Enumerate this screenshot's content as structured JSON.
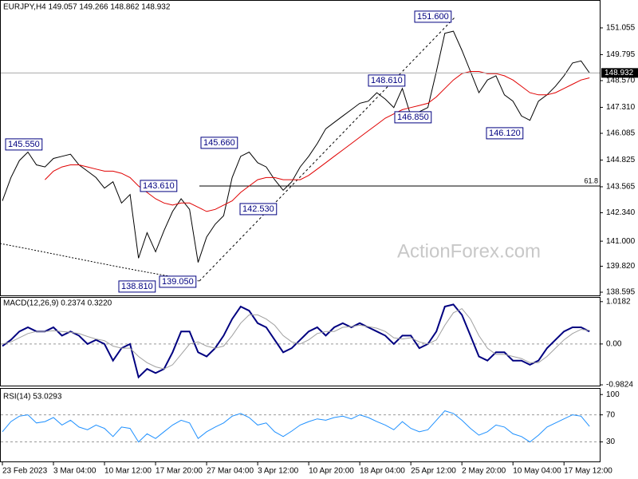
{
  "chart_data": [
    {
      "type": "line",
      "title": "EURJPY,H4  149.057 149.266 148.862 148.932",
      "ylim": [
        138.445,
        152.37
      ],
      "yticks": [
        {
          "value": 138.595,
          "label": "138.595"
        },
        {
          "value": 139.82,
          "label": "139.820"
        },
        {
          "value": 141.0,
          "label": "141.000"
        },
        {
          "value": 142.34,
          "label": "142.340"
        },
        143.565,
        144.825,
        146.085,
        {
          "value": 147.31,
          "label": "147.310"
        },
        {
          "value": 148.57,
          "label": "148.570"
        },
        149.795,
        151.055
      ],
      "last_price": 148.932,
      "fib": {
        "label": "61.8",
        "value": 143.6
      },
      "annotations": [
        "145.550",
        "143.610",
        "145.660",
        "142.530",
        "138.810",
        "139.050",
        "148.610",
        "146.850",
        "151.600",
        "146.120"
      ],
      "watermark": "ActionForex.com",
      "series": [
        {
          "color": "#000000",
          "values": [
            142.9,
            144.0,
            144.8,
            145.2,
            144.6,
            144.5,
            144.9,
            145.0,
            145.1,
            144.6,
            144.3,
            144.0,
            143.5,
            143.8,
            142.8,
            143.2,
            140.2,
            141.4,
            140.5,
            141.5,
            142.4,
            143.0,
            142.5,
            140.0,
            141.2,
            141.8,
            142.2,
            144.0,
            145.0,
            145.2,
            144.7,
            144.5,
            143.9,
            143.4,
            143.8,
            144.5,
            145.0,
            145.6,
            146.3,
            146.6,
            146.9,
            147.2,
            147.5,
            147.6,
            148.0,
            147.7,
            147.3,
            148.2,
            146.9,
            147.1,
            147.3,
            149.0,
            150.8,
            150.9,
            150.0,
            149.0,
            148.0,
            148.6,
            148.8,
            147.9,
            147.6,
            146.9,
            146.7,
            147.6,
            147.9,
            148.3,
            148.8,
            149.4,
            149.5,
            148.932
          ]
        },
        {
          "color": "#e00000",
          "values": [
            null,
            null,
            null,
            null,
            null,
            143.9,
            144.3,
            144.5,
            144.6,
            144.6,
            144.5,
            144.4,
            144.3,
            144.3,
            144.2,
            144.0,
            143.6,
            143.3,
            143.0,
            142.8,
            142.7,
            142.8,
            142.8,
            142.6,
            142.4,
            142.5,
            142.7,
            142.9,
            143.3,
            143.6,
            143.9,
            144.0,
            144.0,
            143.9,
            143.9,
            143.9,
            144.1,
            144.4,
            144.7,
            145.0,
            145.3,
            145.6,
            145.9,
            146.2,
            146.5,
            146.8,
            147.0,
            147.2,
            147.3,
            147.4,
            147.5,
            147.8,
            148.2,
            148.6,
            148.9,
            149.0,
            149.0,
            148.9,
            148.9,
            148.8,
            148.6,
            148.3,
            148.0,
            147.9,
            147.9,
            148.0,
            148.2,
            148.4,
            148.6,
            148.7
          ]
        }
      ]
    },
    {
      "type": "line",
      "title": "MACD(12,26,9) 0.2374 0.3220",
      "ylim": [
        -1.02,
        1.13
      ],
      "yticks": [
        -0.9824,
        {
          "value": 0,
          "label": "0.00"
        },
        1.0182
      ],
      "levels": [
        0
      ],
      "series": [
        {
          "color": "#000080",
          "values": [
            -0.05,
            0.1,
            0.3,
            0.4,
            0.3,
            0.3,
            0.4,
            0.2,
            0.3,
            0.2,
            0.0,
            0.1,
            0.0,
            -0.4,
            -0.1,
            0.0,
            -0.8,
            -0.6,
            -0.7,
            -0.6,
            -0.2,
            0.3,
            0.3,
            -0.2,
            -0.3,
            -0.1,
            0.2,
            0.6,
            0.9,
            0.8,
            0.5,
            0.4,
            0.1,
            -0.2,
            -0.1,
            0.1,
            0.3,
            0.4,
            0.2,
            0.4,
            0.5,
            0.4,
            0.5,
            0.4,
            0.3,
            0.2,
            0.0,
            0.2,
            0.2,
            -0.1,
            0.0,
            0.3,
            0.9,
            0.95,
            0.7,
            0.2,
            -0.3,
            -0.4,
            -0.2,
            -0.2,
            -0.4,
            -0.4,
            -0.5,
            -0.4,
            -0.1,
            0.1,
            0.3,
            0.4,
            0.4,
            0.3
          ]
        },
        {
          "color": "#a0a0a0",
          "values": [
            0.0,
            0.05,
            0.15,
            0.25,
            0.3,
            0.3,
            0.32,
            0.3,
            0.28,
            0.25,
            0.18,
            0.12,
            0.08,
            -0.05,
            -0.1,
            -0.1,
            -0.3,
            -0.45,
            -0.55,
            -0.6,
            -0.5,
            -0.25,
            0.0,
            0.05,
            -0.05,
            -0.1,
            -0.05,
            0.2,
            0.5,
            0.7,
            0.7,
            0.6,
            0.45,
            0.2,
            0.05,
            0.0,
            0.1,
            0.25,
            0.3,
            0.3,
            0.4,
            0.42,
            0.45,
            0.42,
            0.38,
            0.3,
            0.15,
            0.12,
            0.15,
            0.05,
            0.0,
            0.1,
            0.45,
            0.75,
            0.85,
            0.6,
            0.2,
            -0.1,
            -0.25,
            -0.25,
            -0.3,
            -0.35,
            -0.45,
            -0.45,
            -0.3,
            -0.1,
            0.1,
            0.25,
            0.35,
            0.33
          ]
        }
      ]
    },
    {
      "type": "line",
      "title": "RSI(14) 53.0293",
      "ylim": [
        0,
        108.5
      ],
      "yticks": [
        30,
        70,
        100
      ],
      "levels": [
        30,
        70
      ],
      "x": [
        "23 Feb 2023",
        null,
        null,
        null,
        null,
        null,
        "3 Mar 04:00",
        null,
        null,
        null,
        null,
        null,
        "10 Mar 12:00",
        null,
        null,
        null,
        null,
        null,
        "17 Mar 20:00",
        null,
        null,
        null,
        null,
        null,
        "27 Mar 04:00",
        null,
        null,
        null,
        null,
        null,
        "3 Apr 12:00",
        null,
        null,
        null,
        null,
        null,
        "10 Apr 20:00",
        null,
        null,
        null,
        null,
        null,
        "18 Apr 04:00",
        null,
        null,
        null,
        null,
        null,
        "25 Apr 12:00",
        null,
        null,
        null,
        null,
        null,
        "2 May 20:00",
        null,
        null,
        null,
        null,
        null,
        "10 May 04:00",
        null,
        null,
        null,
        null,
        null,
        "17 May 12:00",
        null,
        null,
        null
      ],
      "series": [
        {
          "color": "#1e90ff",
          "values": [
            45,
            60,
            68,
            70,
            58,
            60,
            66,
            55,
            62,
            52,
            48,
            55,
            50,
            38,
            52,
            50,
            30,
            42,
            35,
            45,
            55,
            62,
            58,
            35,
            45,
            52,
            58,
            68,
            72,
            66,
            55,
            58,
            45,
            38,
            46,
            55,
            60,
            64,
            62,
            66,
            68,
            64,
            70,
            66,
            60,
            55,
            48,
            60,
            50,
            45,
            48,
            62,
            76,
            72,
            62,
            50,
            40,
            45,
            55,
            52,
            42,
            38,
            30,
            40,
            52,
            58,
            64,
            70,
            68,
            53
          ]
        }
      ]
    }
  ]
}
